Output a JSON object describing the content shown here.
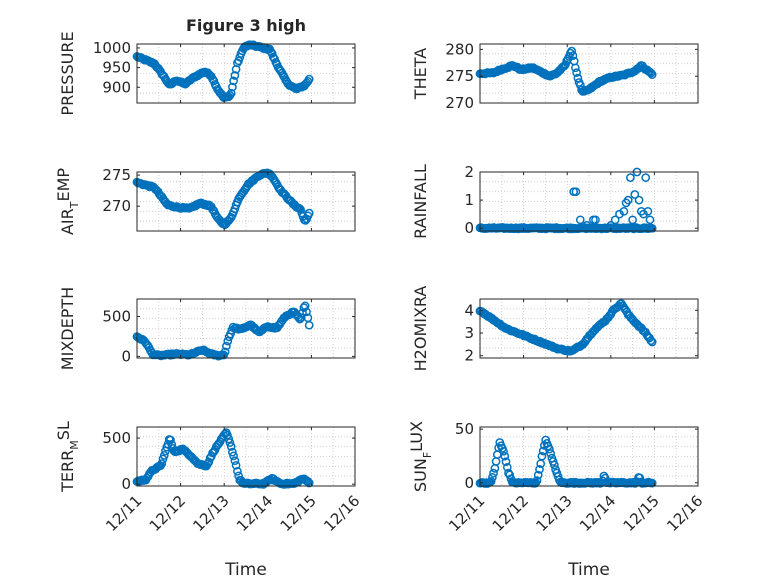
{
  "figure": {
    "title": "Figure 3 high",
    "xlabel": "Time",
    "xticks": [
      "12/11",
      "12/12",
      "12/13",
      "12/14",
      "12/15",
      "12/16"
    ]
  },
  "colors": {
    "marker": "#0072BD",
    "axis": "#262626",
    "grid": "#c8c8c8",
    "background": "#ffffff"
  },
  "chart_data": [
    {
      "type": "scatter",
      "title": "Figure 3 high",
      "ylabel": "PRESSURE",
      "ylim": [
        860,
        1010
      ],
      "yticks": [
        {
          "v": 900,
          "t": "900"
        },
        {
          "v": 950,
          "t": "950"
        },
        {
          "v": 1000,
          "t": "1000"
        }
      ],
      "xlim": [
        0,
        5
      ],
      "marker": "circle",
      "grid": true,
      "series": [
        {
          "keys": [
            [
              0.0,
              978
            ],
            [
              0.4,
              960
            ],
            [
              0.6,
              930
            ],
            [
              0.75,
              905
            ],
            [
              0.9,
              918
            ],
            [
              1.1,
              908
            ],
            [
              1.3,
              925
            ],
            [
              1.55,
              940
            ],
            [
              1.7,
              930
            ],
            [
              1.85,
              895
            ],
            [
              2.0,
              872
            ],
            [
              2.15,
              880
            ],
            [
              2.3,
              960
            ],
            [
              2.45,
              1002
            ],
            [
              2.6,
              1008
            ],
            [
              2.9,
              1000
            ],
            [
              3.05,
              996
            ],
            [
              3.2,
              960
            ],
            [
              3.45,
              910
            ],
            [
              3.65,
              895
            ],
            [
              3.85,
              905
            ],
            [
              3.95,
              920
            ]
          ],
          "n": 140
        }
      ]
    },
    {
      "type": "scatter",
      "ylabel": "THETA",
      "ylim": [
        270,
        281
      ],
      "yticks": [
        {
          "v": 270,
          "t": "270"
        },
        {
          "v": 275,
          "t": "275"
        },
        {
          "v": 280,
          "t": "280"
        }
      ],
      "xlim": [
        0,
        5
      ],
      "marker": "circle",
      "grid": true,
      "series": [
        {
          "keys": [
            [
              0.0,
              275.5
            ],
            [
              0.3,
              275.6
            ],
            [
              0.5,
              276.3
            ],
            [
              0.75,
              277.0
            ],
            [
              0.95,
              276.2
            ],
            [
              1.2,
              276.6
            ],
            [
              1.4,
              275.8
            ],
            [
              1.6,
              275.0
            ],
            [
              1.75,
              275.5
            ],
            [
              1.95,
              277.0
            ],
            [
              2.1,
              279.8
            ],
            [
              2.25,
              274.5
            ],
            [
              2.35,
              272.0
            ],
            [
              2.5,
              272.5
            ],
            [
              2.75,
              274.0
            ],
            [
              3.0,
              274.8
            ],
            [
              3.3,
              275.2
            ],
            [
              3.55,
              276.0
            ],
            [
              3.7,
              277.0
            ],
            [
              3.85,
              276.0
            ],
            [
              3.95,
              275.4
            ]
          ],
          "n": 140
        }
      ]
    },
    {
      "type": "scatter",
      "ylabel": "AIR_TEMP",
      "ylim": [
        266,
        275.5
      ],
      "yticks": [
        {
          "v": 270,
          "t": "270"
        },
        {
          "v": 275,
          "t": "275"
        }
      ],
      "xlim": [
        0,
        5
      ],
      "marker": "circle",
      "grid": true,
      "series": [
        {
          "keys": [
            [
              0.0,
              273.8
            ],
            [
              0.4,
              273.0
            ],
            [
              0.7,
              270.2
            ],
            [
              0.95,
              269.8
            ],
            [
              1.2,
              269.6
            ],
            [
              1.45,
              270.5
            ],
            [
              1.7,
              270.0
            ],
            [
              1.85,
              268.0
            ],
            [
              2.0,
              267.0
            ],
            [
              2.15,
              268.0
            ],
            [
              2.35,
              271.5
            ],
            [
              2.55,
              273.5
            ],
            [
              2.8,
              275.0
            ],
            [
              3.0,
              275.4
            ],
            [
              3.1,
              274.8
            ],
            [
              3.3,
              272.5
            ],
            [
              3.6,
              270.2
            ],
            [
              3.75,
              269.5
            ],
            [
              3.85,
              267.5
            ],
            [
              3.95,
              268.8
            ]
          ],
          "n": 140
        }
      ]
    },
    {
      "type": "scatter",
      "ylabel": "RAINFALL",
      "ylim": [
        -0.1,
        2
      ],
      "yticks": [
        {
          "v": 0,
          "t": "0"
        },
        {
          "v": 1,
          "t": "1"
        },
        {
          "v": 2,
          "t": "2"
        }
      ],
      "xlim": [
        0,
        5
      ],
      "marker": "circle",
      "grid": true,
      "series": [
        {
          "keys": [
            [
              0.0,
              0
            ],
            [
              3.95,
              0
            ]
          ],
          "n": 150
        },
        {
          "points": [
            [
              2.15,
              1.3
            ],
            [
              2.2,
              1.3
            ],
            [
              2.3,
              0.3
            ],
            [
              2.45,
              0.1
            ],
            [
              2.6,
              0.3
            ],
            [
              2.65,
              0.3
            ],
            [
              3.0,
              0.1
            ],
            [
              3.1,
              0.3
            ],
            [
              3.2,
              0.5
            ],
            [
              3.3,
              0.6
            ],
            [
              3.35,
              0.9
            ],
            [
              3.4,
              1.0
            ],
            [
              3.45,
              1.8
            ],
            [
              3.5,
              0.3
            ],
            [
              3.55,
              1.2
            ],
            [
              3.6,
              2.0
            ],
            [
              3.65,
              1.0
            ],
            [
              3.7,
              0.6
            ],
            [
              3.75,
              0.5
            ],
            [
              3.8,
              1.8
            ],
            [
              3.85,
              0.6
            ],
            [
              3.9,
              0.3
            ]
          ]
        }
      ]
    },
    {
      "type": "scatter",
      "ylabel": "MIXDEPTH",
      "ylim": [
        -20,
        720
      ],
      "yticks": [
        {
          "v": 0,
          "t": "0"
        },
        {
          "v": 500,
          "t": "500"
        }
      ],
      "xlim": [
        0,
        5
      ],
      "marker": "circle",
      "grid": true,
      "series": [
        {
          "keys": [
            [
              0.0,
              250
            ],
            [
              0.2,
              180
            ],
            [
              0.35,
              30
            ],
            [
              0.5,
              10
            ],
            [
              0.9,
              30
            ],
            [
              1.2,
              20
            ],
            [
              1.5,
              80
            ],
            [
              1.7,
              30
            ],
            [
              1.85,
              10
            ],
            [
              2.0,
              20
            ],
            [
              2.1,
              230
            ],
            [
              2.2,
              360
            ],
            [
              2.4,
              340
            ],
            [
              2.6,
              400
            ],
            [
              2.8,
              300
            ],
            [
              3.0,
              380
            ],
            [
              3.2,
              350
            ],
            [
              3.4,
              500
            ],
            [
              3.6,
              560
            ],
            [
              3.75,
              450
            ],
            [
              3.85,
              650
            ],
            [
              3.95,
              400
            ]
          ],
          "n": 130
        }
      ]
    },
    {
      "type": "scatter",
      "ylabel": "H2OMIXRA",
      "ylim": [
        1.9,
        4.5
      ],
      "yticks": [
        {
          "v": 2,
          "t": "2"
        },
        {
          "v": 3,
          "t": "3"
        },
        {
          "v": 4,
          "t": "4"
        }
      ],
      "xlim": [
        0,
        5
      ],
      "marker": "circle",
      "grid": true,
      "series": [
        {
          "keys": [
            [
              0.0,
              4.0
            ],
            [
              0.3,
              3.6
            ],
            [
              0.6,
              3.2
            ],
            [
              1.0,
              2.9
            ],
            [
              1.4,
              2.6
            ],
            [
              1.8,
              2.3
            ],
            [
              2.1,
              2.2
            ],
            [
              2.35,
              2.5
            ],
            [
              2.6,
              3.1
            ],
            [
              2.9,
              3.6
            ],
            [
              3.1,
              4.1
            ],
            [
              3.25,
              4.3
            ],
            [
              3.4,
              3.8
            ],
            [
              3.6,
              3.4
            ],
            [
              3.8,
              3.0
            ],
            [
              3.95,
              2.6
            ]
          ],
          "n": 130
        }
      ]
    },
    {
      "type": "scatter",
      "ylabel": "TERR_MSL",
      "ylim": [
        -20,
        620
      ],
      "yticks": [
        {
          "v": 0,
          "t": "0"
        },
        {
          "v": 500,
          "t": "500"
        }
      ],
      "xlim": [
        0,
        5
      ],
      "marker": "circle",
      "grid": true,
      "series": [
        {
          "keys": [
            [
              0.0,
              30
            ],
            [
              0.2,
              50
            ],
            [
              0.35,
              150
            ],
            [
              0.55,
              200
            ],
            [
              0.75,
              500
            ],
            [
              0.85,
              350
            ],
            [
              1.05,
              380
            ],
            [
              1.25,
              300
            ],
            [
              1.4,
              220
            ],
            [
              1.6,
              200
            ],
            [
              1.75,
              350
            ],
            [
              1.9,
              460
            ],
            [
              2.05,
              560
            ],
            [
              2.15,
              420
            ],
            [
              2.25,
              250
            ],
            [
              2.35,
              50
            ],
            [
              2.45,
              5
            ],
            [
              2.9,
              5
            ],
            [
              3.1,
              60
            ],
            [
              3.3,
              5
            ],
            [
              3.6,
              5
            ],
            [
              3.8,
              60
            ],
            [
              3.95,
              20
            ]
          ],
          "n": 140
        }
      ]
    },
    {
      "type": "scatter",
      "ylabel": "SUN_FLUX",
      "ylim": [
        -3,
        52
      ],
      "yticks": [
        {
          "v": 0,
          "t": "0"
        },
        {
          "v": 50,
          "t": "50"
        }
      ],
      "xlim": [
        0,
        5
      ],
      "marker": "circle",
      "grid": true,
      "series": [
        {
          "keys": [
            [
              0.0,
              0
            ],
            [
              0.25,
              0
            ],
            [
              0.35,
              15
            ],
            [
              0.45,
              38
            ],
            [
              0.55,
              28
            ],
            [
              0.65,
              10
            ],
            [
              0.75,
              0
            ],
            [
              1.3,
              0
            ],
            [
              1.4,
              20
            ],
            [
              1.5,
              40
            ],
            [
              1.6,
              30
            ],
            [
              1.75,
              10
            ],
            [
              1.85,
              0
            ],
            [
              2.8,
              0
            ],
            [
              2.85,
              8
            ],
            [
              2.9,
              0
            ],
            [
              3.6,
              0
            ],
            [
              3.65,
              6
            ],
            [
              3.7,
              0
            ],
            [
              3.95,
              0
            ]
          ],
          "n": 140
        }
      ]
    }
  ]
}
